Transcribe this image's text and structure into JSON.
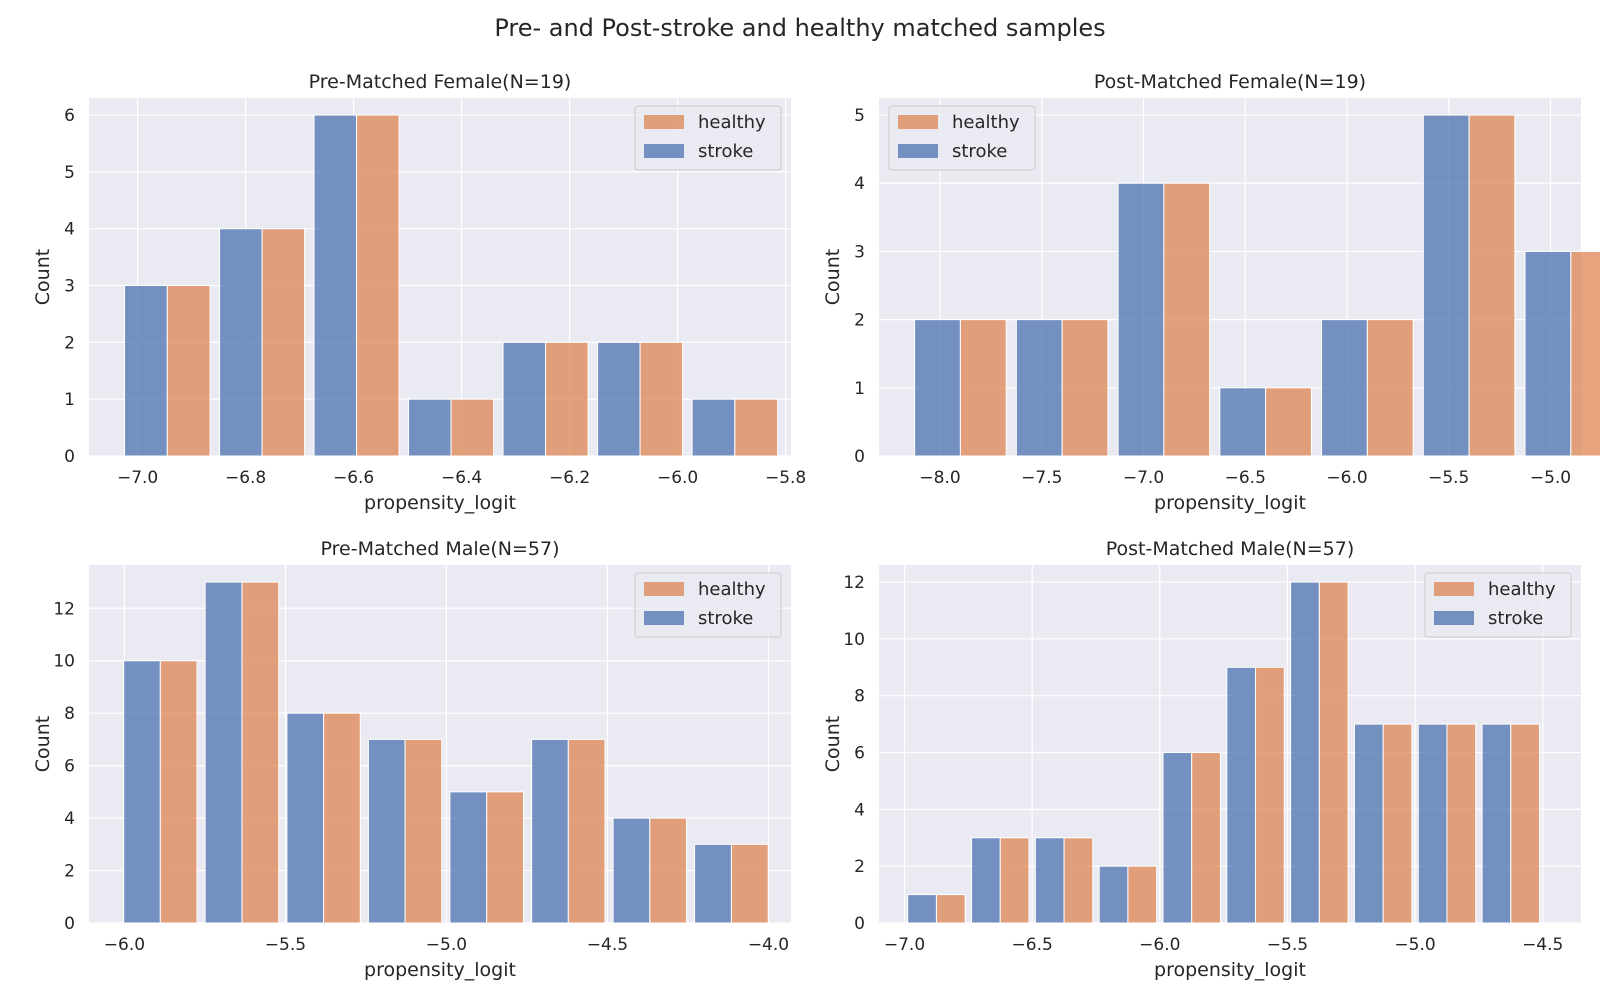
{
  "figure": {
    "title": "Pre- and Post-stroke and healthy matched samples"
  },
  "colors": {
    "stroke": "#4c72b0",
    "healthy": "#dd8452",
    "plot_bg": "#eaeaf2",
    "grid": "#ffffff",
    "text": "#262626"
  },
  "chart_data": [
    {
      "type": "bar",
      "title": "Pre-Matched Female(N=19)",
      "xlabel": "propensity_logit",
      "ylabel": "Count",
      "xlim": [
        -7.09,
        -5.79
      ],
      "ylim": [
        0,
        6.3
      ],
      "xticks": [
        -7.0,
        -6.8,
        -6.6,
        -6.4,
        -6.2,
        -6.0,
        -5.8
      ],
      "xtick_labels": [
        "−7.0",
        "−6.8",
        "−6.6",
        "−6.4",
        "−6.2",
        "−6.0",
        "−5.8"
      ],
      "yticks": [
        0,
        1,
        2,
        3,
        4,
        5,
        6
      ],
      "bin_edges": [
        -7.033,
        -6.857,
        -6.682,
        -6.507,
        -6.332,
        -6.157,
        -5.982,
        -5.806
      ],
      "series": [
        {
          "name": "stroke",
          "values": [
            3,
            4,
            6,
            1,
            2,
            2,
            1
          ]
        },
        {
          "name": "healthy",
          "values": [
            3,
            4,
            6,
            1,
            2,
            2,
            1
          ]
        }
      ],
      "legend": {
        "position": "top-right",
        "entries": [
          "healthy",
          "stroke"
        ]
      },
      "grid": true
    },
    {
      "type": "bar",
      "title": "Post-Matched Female(N=19)",
      "xlabel": "propensity_logit",
      "ylabel": "Count",
      "xlim": [
        -8.3,
        -4.85
      ],
      "ylim": [
        0,
        5.25
      ],
      "xticks": [
        -8.0,
        -7.5,
        -7.0,
        -6.5,
        -6.0,
        -5.5,
        -5.0
      ],
      "xtick_labels": [
        "−8.0",
        "−7.5",
        "−7.0",
        "−6.5",
        "−6.0",
        "−5.5",
        "−5.0"
      ],
      "yticks": [
        0,
        1,
        2,
        3,
        4,
        5
      ],
      "bin_edges": [
        -8.15,
        -7.65,
        -7.15,
        -6.65,
        -6.15,
        -5.65,
        -5.15,
        -4.65
      ],
      "series": [
        {
          "name": "stroke",
          "values": [
            2,
            2,
            4,
            1,
            2,
            5,
            3
          ]
        },
        {
          "name": "healthy",
          "values": [
            2,
            2,
            4,
            1,
            2,
            5,
            3
          ]
        }
      ],
      "legend": {
        "position": "top-left",
        "entries": [
          "healthy",
          "stroke"
        ]
      },
      "grid": true
    },
    {
      "type": "bar",
      "title": "Pre-Matched Male(N=57)",
      "xlabel": "propensity_logit",
      "ylabel": "Count",
      "xlim": [
        -6.11,
        -3.93
      ],
      "ylim": [
        0,
        13.65
      ],
      "xticks": [
        -6.0,
        -5.5,
        -5.0,
        -4.5,
        -4.0
      ],
      "xtick_labels": [
        "−6.0",
        "−5.5",
        "−5.0",
        "−4.5",
        "−4.0"
      ],
      "yticks": [
        0,
        2,
        4,
        6,
        8,
        10,
        12
      ],
      "bin_edges": [
        -6.015,
        -5.762,
        -5.508,
        -5.255,
        -5.002,
        -4.748,
        -4.495,
        -4.242,
        -3.988
      ],
      "series": [
        {
          "name": "stroke",
          "values": [
            10,
            13,
            8,
            7,
            5,
            7,
            4,
            3
          ]
        },
        {
          "name": "healthy",
          "values": [
            10,
            13,
            8,
            7,
            5,
            7,
            4,
            3
          ]
        }
      ],
      "legend": {
        "position": "top-right",
        "entries": [
          "healthy",
          "stroke"
        ]
      },
      "grid": true
    },
    {
      "type": "bar",
      "title": "Post-Matched Male(N=57)",
      "xlabel": "propensity_logit",
      "ylabel": "Count",
      "xlim": [
        -7.1,
        -4.35
      ],
      "ylim": [
        0,
        12.6
      ],
      "xticks": [
        -7.0,
        -6.5,
        -6.0,
        -5.5,
        -5.0,
        -4.5
      ],
      "xtick_labels": [
        "−7.0",
        "−6.5",
        "−6.0",
        "−5.5",
        "−5.0",
        "−4.5"
      ],
      "yticks": [
        0,
        2,
        4,
        6,
        8,
        10,
        12
      ],
      "bin_edges": [
        -7.0,
        -6.75,
        -6.5,
        -6.25,
        -6.0,
        -5.75,
        -5.5,
        -5.25,
        -5.0,
        -4.75,
        -4.5
      ],
      "series": [
        {
          "name": "stroke",
          "values": [
            1,
            3,
            3,
            2,
            6,
            9,
            12,
            7,
            7,
            7
          ]
        },
        {
          "name": "healthy",
          "values": [
            1,
            3,
            3,
            2,
            6,
            9,
            12,
            7,
            7,
            7
          ]
        }
      ],
      "legend": {
        "position": "top-right",
        "entries": [
          "healthy",
          "stroke"
        ]
      },
      "grid": true
    }
  ]
}
